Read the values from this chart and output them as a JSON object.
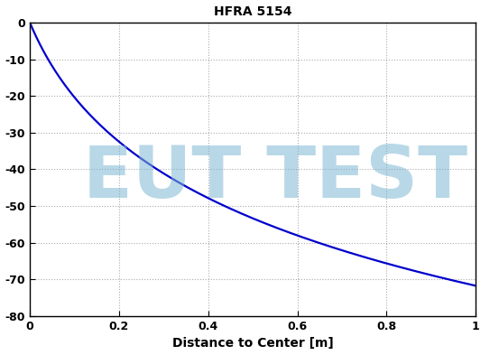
{
  "title": "HFRA 5154",
  "xlabel": "Distance to Center [m]",
  "xlim": [
    0,
    1
  ],
  "ylim": [
    -80,
    0
  ],
  "xticks": [
    0,
    0.2,
    0.4,
    0.6,
    0.8,
    1.0
  ],
  "yticks": [
    0,
    -10,
    -20,
    -30,
    -40,
    -50,
    -60,
    -70,
    -80
  ],
  "line_color": "#0000cc",
  "line_width": 1.6,
  "grid_color": "#aaaaaa",
  "grid_linestyle": ":",
  "background_color": "#ffffff",
  "watermark_text": "EUT TEST",
  "watermark_color": "#7eb8d4",
  "watermark_alpha": 0.55,
  "watermark_fontsize": 58,
  "title_fontsize": 10,
  "label_fontsize": 10,
  "tick_fontsize": 9,
  "curve_a": -30.5,
  "curve_b": 9.5
}
